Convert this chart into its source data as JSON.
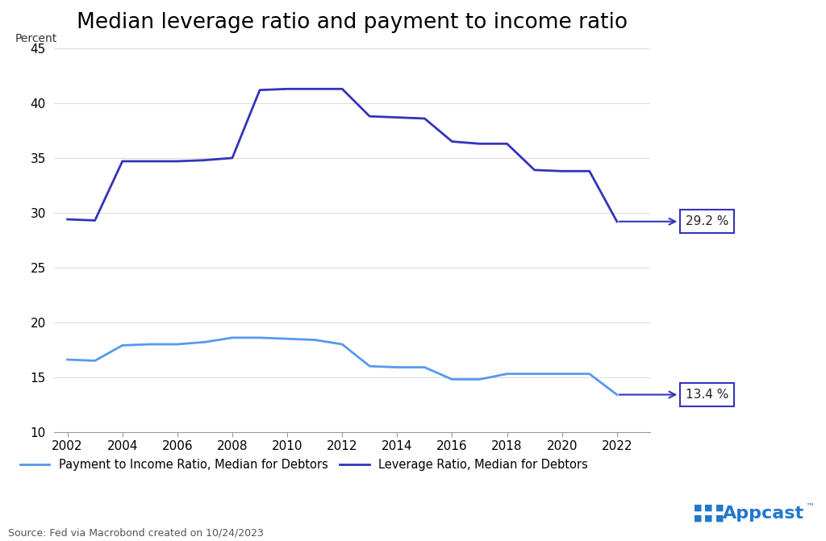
{
  "title": "Median leverage ratio and payment to income ratio",
  "ylabel": "Percent",
  "source": "Source: Fed via Macrobond created on 10/24/2023",
  "ylim": [
    10,
    45
  ],
  "yticks": [
    10,
    15,
    20,
    25,
    30,
    35,
    40,
    45
  ],
  "xlim": [
    2001.5,
    2023.2
  ],
  "xticks": [
    2002,
    2004,
    2006,
    2008,
    2010,
    2012,
    2014,
    2016,
    2018,
    2020,
    2022
  ],
  "leverage_years": [
    2002,
    2003,
    2004,
    2005,
    2006,
    2007,
    2008,
    2009,
    2010,
    2011,
    2012,
    2013,
    2014,
    2015,
    2016,
    2017,
    2018,
    2019,
    2020,
    2021,
    2022
  ],
  "leverage_values": [
    29.4,
    29.3,
    34.7,
    34.7,
    34.7,
    34.8,
    35.0,
    41.2,
    41.3,
    41.3,
    41.3,
    38.8,
    38.7,
    38.6,
    36.5,
    36.3,
    36.3,
    33.9,
    33.8,
    33.8,
    29.2
  ],
  "payment_years": [
    2002,
    2003,
    2004,
    2005,
    2006,
    2007,
    2008,
    2009,
    2010,
    2011,
    2012,
    2013,
    2014,
    2015,
    2016,
    2017,
    2018,
    2019,
    2020,
    2021,
    2022
  ],
  "payment_values": [
    16.6,
    16.5,
    17.9,
    18.0,
    18.0,
    18.2,
    18.6,
    18.6,
    18.5,
    18.4,
    18.0,
    16.0,
    15.9,
    15.9,
    14.8,
    14.8,
    15.3,
    15.3,
    15.3,
    15.3,
    13.4
  ],
  "leverage_color": "#3333bb",
  "payment_color": "#5599ee",
  "label_leverage": "Leverage Ratio, Median for Debtors",
  "label_payment": "Payment to Income Ratio, Median for Debtors",
  "annotation_leverage_value": "29.2 %",
  "annotation_payment_value": "13.4 %",
  "annotation_box_color": "#3333bb",
  "background_color": "#ffffff",
  "title_fontsize": 19,
  "axis_fontsize": 10,
  "tick_fontsize": 11,
  "legend_fontsize": 10.5
}
